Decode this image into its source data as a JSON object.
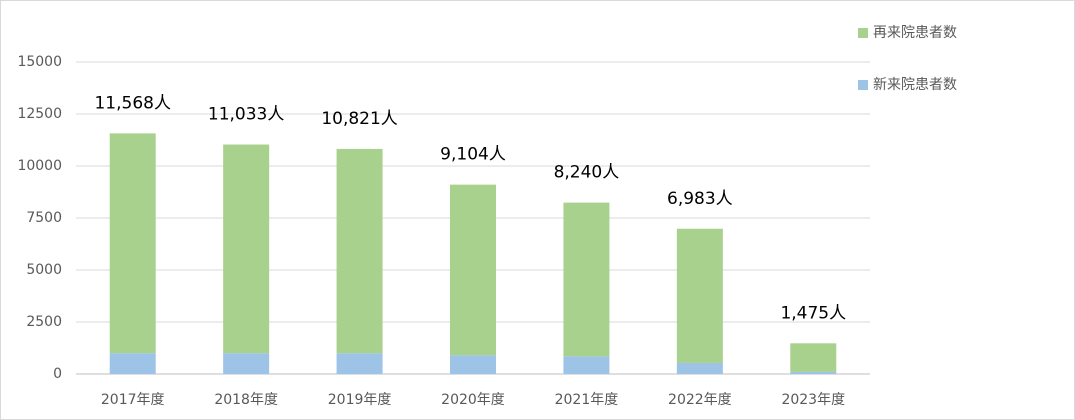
{
  "chart_data": {
    "type": "stacked-bar",
    "categories": [
      "2017年度",
      "2018年度",
      "2019年度",
      "2020年度",
      "2021年度",
      "2022年度",
      "2023年度"
    ],
    "series": [
      {
        "name": "新来院患者数",
        "color": "#9dc3e6",
        "values": [
          1000,
          1000,
          1000,
          900,
          850,
          530,
          100
        ]
      },
      {
        "name": "再来院患者数",
        "color": "#a9d18e",
        "values": [
          10568,
          10033,
          9821,
          8204,
          7390,
          6453,
          1375
        ]
      }
    ],
    "totals": [
      11568,
      11033,
      10821,
      9104,
      8240,
      6983,
      1475
    ],
    "total_labels": [
      "11,568人",
      "11,033人",
      "10,821人",
      "9,104人",
      "8,240人",
      "6,983人",
      "1,475人"
    ],
    "ylim": [
      0,
      15000
    ],
    "yticks": [
      0,
      2500,
      5000,
      7500,
      10000,
      12500,
      15000
    ],
    "grid": true
  }
}
